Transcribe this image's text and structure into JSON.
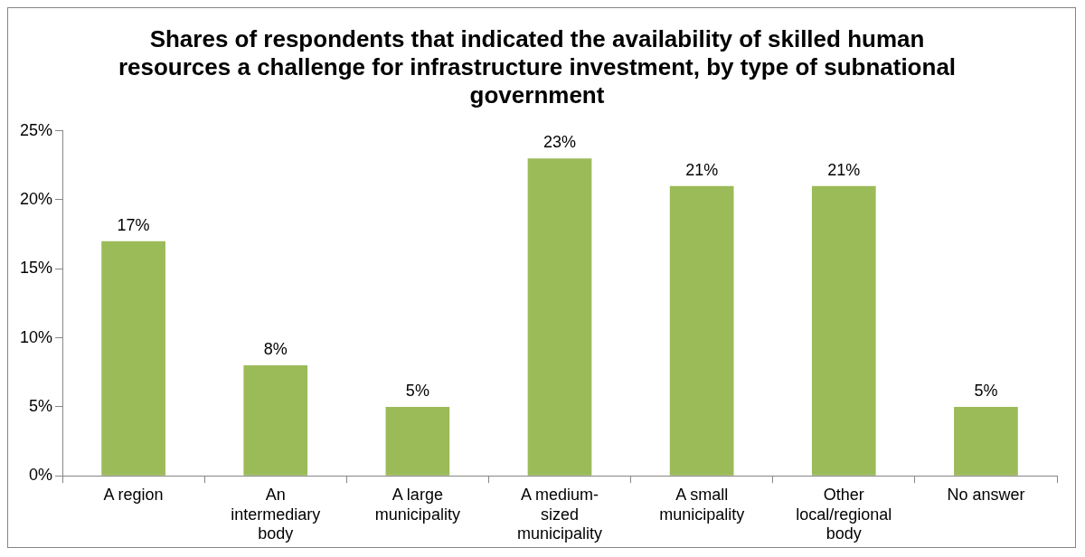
{
  "chart_data": {
    "type": "bar",
    "title": "Shares of respondents that indicated the availability of skilled human resources a challenge for infrastructure investment, by type of subnational government",
    "categories": [
      "A region",
      "An intermediary body",
      "A large municipality",
      "A medium-sized municipality",
      "A small municipality",
      "Other local/regional body",
      "No answer"
    ],
    "values": [
      17,
      8,
      5,
      23,
      21,
      21,
      5
    ],
    "value_labels": [
      "17%",
      "8%",
      "5%",
      "23%",
      "21%",
      "21%",
      "5%"
    ],
    "color": "#9bbb59",
    "ylim": [
      0,
      25
    ],
    "yticks": [
      {
        "value": 0,
        "label": "0%"
      },
      {
        "value": 5,
        "label": "5%"
      },
      {
        "value": 10,
        "label": "10%"
      },
      {
        "value": 15,
        "label": "15%"
      },
      {
        "value": 20,
        "label": "20%"
      },
      {
        "value": 25,
        "label": "25%"
      }
    ],
    "grid": false,
    "legend": false
  }
}
